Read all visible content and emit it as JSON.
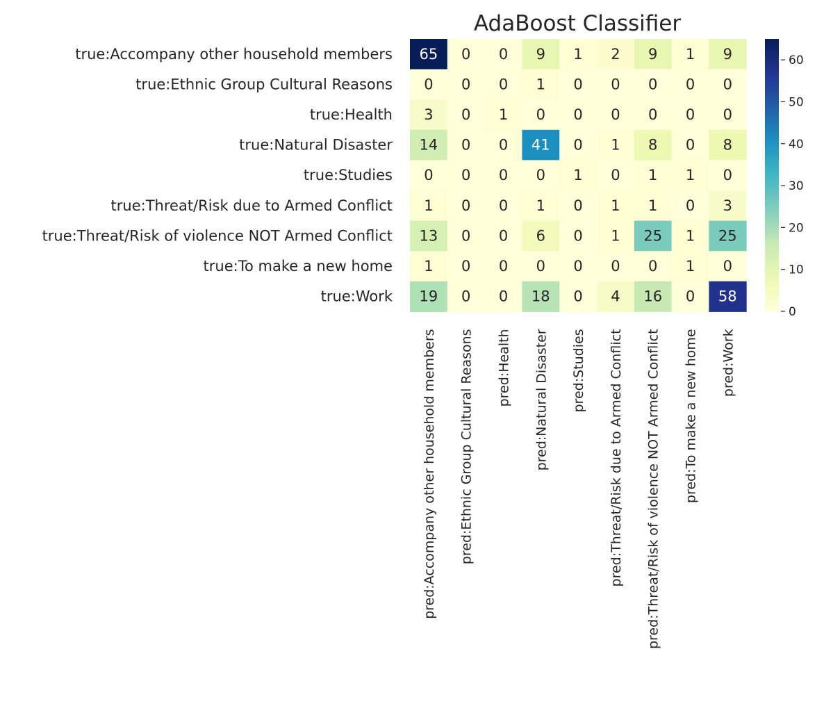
{
  "chart_data": {
    "type": "heatmap",
    "title": "AdaBoost Classifier",
    "rows": [
      "true:Accompany other household members",
      "true:Ethnic Group Cultural Reasons",
      "true:Health",
      "true:Natural Disaster",
      "true:Studies",
      "true:Threat/Risk due to Armed Conflict",
      "true:Threat/Risk of violence NOT Armed Conflict",
      "true:To make a new home",
      "true:Work"
    ],
    "columns": [
      "pred:Accompany other household members",
      "pred:Ethnic Group Cultural Reasons",
      "pred:Health",
      "pred:Natural Disaster",
      "pred:Studies",
      "pred:Threat/Risk due to Armed Conflict",
      "pred:Threat/Risk of violence NOT Armed Conflict",
      "pred:To make a new home",
      "pred:Work"
    ],
    "values": [
      [
        65,
        0,
        0,
        9,
        1,
        2,
        9,
        1,
        9
      ],
      [
        0,
        0,
        0,
        1,
        0,
        0,
        0,
        0,
        0
      ],
      [
        3,
        0,
        1,
        0,
        0,
        0,
        0,
        0,
        0
      ],
      [
        14,
        0,
        0,
        41,
        0,
        1,
        8,
        0,
        8
      ],
      [
        0,
        0,
        0,
        0,
        1,
        0,
        1,
        1,
        0
      ],
      [
        1,
        0,
        0,
        1,
        0,
        1,
        1,
        0,
        3
      ],
      [
        13,
        0,
        0,
        6,
        0,
        1,
        25,
        1,
        25
      ],
      [
        1,
        0,
        0,
        0,
        0,
        0,
        0,
        1,
        0
      ],
      [
        19,
        0,
        0,
        18,
        0,
        4,
        16,
        0,
        58
      ]
    ],
    "colormap": "YlGnBu",
    "vmin": 0,
    "vmax": 65,
    "colorbar_ticks": [
      0,
      10,
      20,
      30,
      40,
      50,
      60
    ],
    "annotations": true
  }
}
